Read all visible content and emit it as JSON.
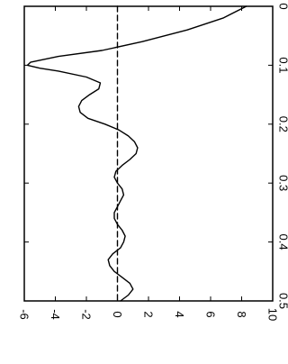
{
  "chart_data": {
    "type": "line",
    "orientation": "rotated-90-clockwise",
    "grid": false,
    "title": "",
    "xlabel": "",
    "ylabel": "",
    "xlim": [
      0,
      0.5
    ],
    "ylim": [
      -6,
      10
    ],
    "x_ticks": [
      {
        "value": 0.0,
        "label": "0"
      },
      {
        "value": 0.1,
        "label": "0.1"
      },
      {
        "value": 0.2,
        "label": "0.2"
      },
      {
        "value": 0.3,
        "label": "0.3"
      },
      {
        "value": 0.4,
        "label": "0.4"
      },
      {
        "value": 0.5,
        "label": "0.5"
      }
    ],
    "y_ticks": [
      {
        "value": 10,
        "label": "10"
      },
      {
        "value": 8,
        "label": "8"
      },
      {
        "value": 6,
        "label": "6"
      },
      {
        "value": 4,
        "label": "4"
      },
      {
        "value": 2,
        "label": "2"
      },
      {
        "value": 0,
        "label": "0"
      },
      {
        "value": -2,
        "label": "-2"
      },
      {
        "value": -4,
        "label": "-4"
      },
      {
        "value": -6,
        "label": "-6"
      }
    ],
    "series": [
      {
        "style": "solid",
        "color": "#000000",
        "x": [
          0.0,
          0.02,
          0.04,
          0.06,
          0.075,
          0.085,
          0.095,
          0.1,
          0.105,
          0.11,
          0.12,
          0.13,
          0.14,
          0.15,
          0.16,
          0.17,
          0.18,
          0.19,
          0.2,
          0.21,
          0.22,
          0.23,
          0.24,
          0.25,
          0.26,
          0.27,
          0.28,
          0.29,
          0.3,
          0.31,
          0.32,
          0.33,
          0.34,
          0.35,
          0.36,
          0.37,
          0.38,
          0.39,
          0.4,
          0.41,
          0.42,
          0.43,
          0.44,
          0.45,
          0.46,
          0.47,
          0.48,
          0.49,
          0.5
        ],
        "y": [
          8.3,
          6.8,
          4.5,
          1.6,
          -1.0,
          -3.8,
          -5.6,
          -5.8,
          -5.0,
          -3.8,
          -2.0,
          -1.1,
          -1.2,
          -1.8,
          -2.3,
          -2.5,
          -2.4,
          -1.9,
          -0.8,
          0.1,
          0.7,
          1.1,
          1.3,
          1.2,
          0.8,
          0.3,
          -0.1,
          -0.2,
          0.0,
          0.3,
          0.4,
          0.2,
          0.0,
          -0.2,
          -0.2,
          0.0,
          0.3,
          0.5,
          0.4,
          0.2,
          -0.3,
          -0.6,
          -0.5,
          -0.2,
          0.3,
          0.8,
          1.0,
          0.7,
          0.2
        ]
      },
      {
        "style": "dashed",
        "color": "#000000",
        "x": [
          0.0,
          0.5
        ],
        "y": [
          0,
          0
        ]
      }
    ]
  }
}
